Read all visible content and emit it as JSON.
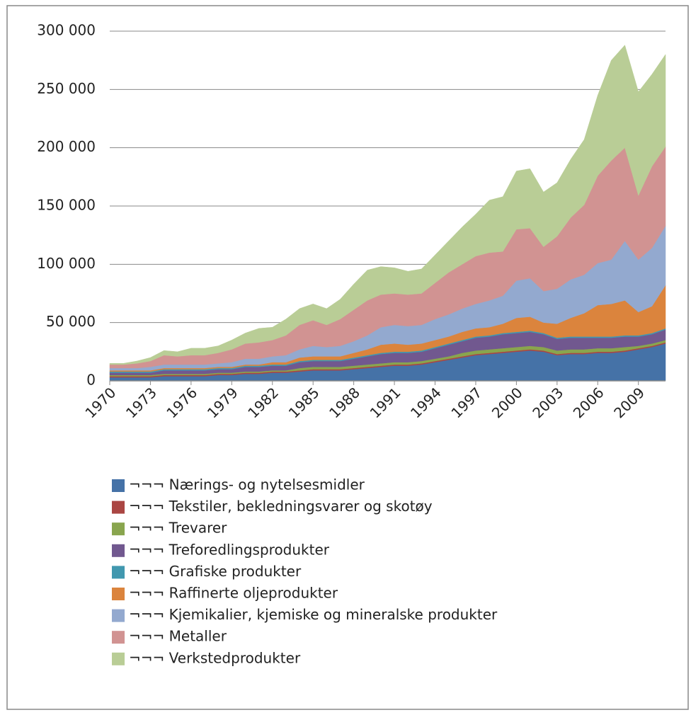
{
  "chart_data": {
    "type": "stacked_area",
    "x": [
      1970,
      1971,
      1972,
      1973,
      1974,
      1975,
      1976,
      1977,
      1978,
      1979,
      1980,
      1981,
      1982,
      1983,
      1984,
      1985,
      1986,
      1987,
      1988,
      1989,
      1990,
      1991,
      1992,
      1993,
      1994,
      1995,
      1996,
      1997,
      1998,
      1999,
      2000,
      2001,
      2002,
      2003,
      2004,
      2005,
      2006,
      2007,
      2008,
      2009,
      2010,
      2011
    ],
    "xlim": [
      1970,
      2011
    ],
    "xticks": [
      1970,
      1973,
      1976,
      1979,
      1982,
      1985,
      1988,
      1991,
      1994,
      1997,
      2000,
      2003,
      2006,
      2009
    ],
    "ylim": [
      0,
      300000
    ],
    "yticks": [
      0,
      {
        "value": 50000,
        "label": "50 000"
      },
      {
        "value": 100000,
        "label": "100 000"
      },
      {
        "value": 150000,
        "label": "150 000"
      },
      {
        "value": 200000,
        "label": "200 000"
      },
      {
        "value": 250000,
        "label": "250 000"
      },
      {
        "value": 300000,
        "label": "300 000"
      }
    ],
    "grid": true,
    "legend": "bottom",
    "series": [
      {
        "name": "¬¬¬ Nærings- og nytelsesmidler",
        "color": "#4572a7",
        "values": [
          3000,
          3000,
          3000,
          3000,
          4000,
          4000,
          4000,
          4000,
          5000,
          5000,
          6000,
          6000,
          7000,
          7000,
          8000,
          9000,
          9000,
          9000,
          10000,
          11000,
          12000,
          13000,
          13000,
          14000,
          16000,
          18000,
          20000,
          22000,
          23000,
          24000,
          25000,
          26000,
          25000,
          22000,
          23000,
          23000,
          24000,
          24000,
          25000,
          27000,
          29000,
          32000
        ]
      },
      {
        "name": "¬¬¬ Tekstiler, bekledningsvarer og skotøy",
        "color": "#aa4643",
        "values": [
          1000,
          1000,
          1000,
          1000,
          1000,
          1000,
          1000,
          1000,
          1000,
          1000,
          1000,
          1000,
          1000,
          1000,
          1000,
          1000,
          1000,
          1000,
          1000,
          1000,
          1000,
          1000,
          1000,
          1000,
          1000,
          1000,
          1000,
          1000,
          1000,
          1000,
          1000,
          1000,
          1000,
          1000,
          1000,
          1000,
          1000,
          1000,
          1000,
          1000,
          1000,
          1000
        ]
      },
      {
        "name": "¬¬¬ Trevarer",
        "color": "#89a54e",
        "values": [
          1000,
          1000,
          1000,
          1000,
          1000,
          1000,
          1000,
          1000,
          1000,
          1000,
          1000,
          1000,
          1000,
          1000,
          2000,
          2000,
          2000,
          2000,
          2000,
          2000,
          2000,
          2000,
          2000,
          2000,
          2000,
          2000,
          3000,
          3000,
          3000,
          3000,
          3000,
          3000,
          3000,
          3000,
          3000,
          3000,
          3000,
          3000,
          3000,
          2000,
          2000,
          2000
        ]
      },
      {
        "name": "¬¬¬ Treforedlingsprodukter",
        "color": "#71588f",
        "values": [
          2000,
          2000,
          2000,
          2000,
          3000,
          3000,
          3000,
          3000,
          3000,
          3000,
          4000,
          4000,
          4000,
          4000,
          5000,
          5000,
          5000,
          5000,
          6000,
          7000,
          8000,
          8000,
          8000,
          8000,
          9000,
          10000,
          10000,
          11000,
          11000,
          12000,
          12000,
          12000,
          11000,
          10000,
          10000,
          10000,
          9000,
          9000,
          9000,
          8000,
          8000,
          9000
        ]
      },
      {
        "name": "¬¬¬ Grafiske produkter",
        "color": "#4198af",
        "values": [
          1000,
          1000,
          1000,
          1000,
          1000,
          1000,
          1000,
          1000,
          1000,
          1000,
          1000,
          1000,
          1000,
          1000,
          1000,
          1000,
          1000,
          1000,
          1000,
          1000,
          1000,
          1000,
          1000,
          1000,
          1000,
          1000,
          1000,
          1000,
          1000,
          1000,
          1000,
          1000,
          1000,
          1000,
          1000,
          1000,
          1000,
          1000,
          1000,
          1000,
          1000,
          1000
        ]
      },
      {
        "name": "¬¬¬ Raffinerte oljeprodukter",
        "color": "#db843d",
        "values": [
          1000,
          1000,
          1000,
          1000,
          1000,
          1000,
          1000,
          1000,
          1000,
          1000,
          1000,
          1000,
          2000,
          2000,
          3000,
          3000,
          3000,
          3000,
          4000,
          5000,
          7000,
          7000,
          6000,
          6000,
          6000,
          6000,
          7000,
          7000,
          7000,
          8000,
          12000,
          12000,
          9000,
          12000,
          16000,
          20000,
          27000,
          28000,
          30000,
          20000,
          23000,
          37000
        ]
      },
      {
        "name": "¬¬¬ Kjemikalier, kjemiske og mineralske produkter",
        "color": "#93a9cf",
        "values": [
          2000,
          2000,
          2000,
          3000,
          3000,
          3000,
          3000,
          3000,
          3000,
          4000,
          5000,
          5000,
          5000,
          6000,
          7000,
          9000,
          8000,
          9000,
          10000,
          12000,
          15000,
          16000,
          16000,
          16000,
          18000,
          19000,
          20000,
          21000,
          23000,
          24000,
          32000,
          33000,
          27000,
          30000,
          33000,
          33000,
          36000,
          38000,
          51000,
          45000,
          50000,
          51000
        ]
      },
      {
        "name": "¬¬¬ Metaller",
        "color": "#d19392",
        "values": [
          3000,
          3000,
          4000,
          5000,
          8000,
          7000,
          8000,
          8000,
          9000,
          11000,
          13000,
          14000,
          14000,
          17000,
          21000,
          22000,
          19000,
          23000,
          27000,
          30000,
          28000,
          27000,
          27000,
          27000,
          31000,
          36000,
          38000,
          41000,
          41000,
          38000,
          44000,
          43000,
          38000,
          45000,
          53000,
          60000,
          75000,
          85000,
          80000,
          55000,
          70000,
          68000
        ]
      },
      {
        "name": "¬¬¬ Verkstedprodukter",
        "color": "#b9cd96",
        "values": [
          1000,
          1000,
          2000,
          3000,
          4000,
          4000,
          6000,
          6000,
          6000,
          8000,
          9000,
          12000,
          11000,
          14000,
          14000,
          14000,
          14000,
          17000,
          22000,
          26000,
          24000,
          22000,
          20000,
          21000,
          24000,
          27000,
          32000,
          36000,
          45000,
          47000,
          50000,
          51000,
          47000,
          46000,
          50000,
          56000,
          69000,
          86000,
          88000,
          89000,
          79000,
          79000
        ]
      }
    ]
  }
}
